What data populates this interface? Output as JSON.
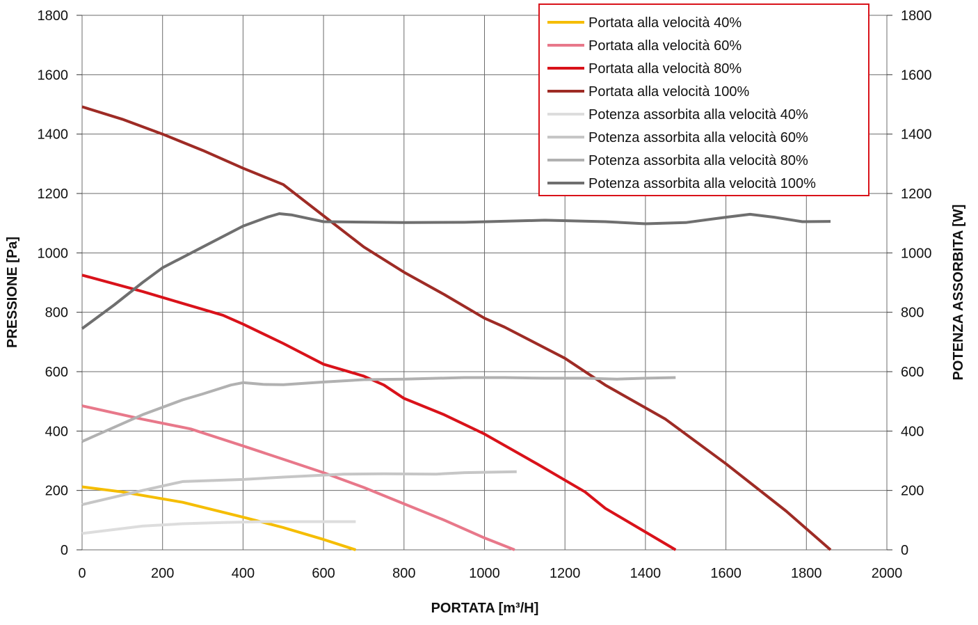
{
  "chart_data": {
    "type": "line",
    "title": "",
    "xlabel": "PORTATA [m³/H]",
    "ylabel": "PRESSIONE [Pa]",
    "y2label": "POTENZA ASSORBITA [W]",
    "xlim": [
      0,
      2000
    ],
    "ylim": [
      0,
      1800
    ],
    "y2lim": [
      0,
      1800
    ],
    "x_ticks": [
      "0",
      "200",
      "400",
      "600",
      "800",
      "1000",
      "1200",
      "1400",
      "1600",
      "1800",
      "2000"
    ],
    "y_ticks": [
      "0",
      "200",
      "400",
      "600",
      "800",
      "1000",
      "1200",
      "1400",
      "1600",
      "1800"
    ],
    "y2_ticks": [
      "0",
      "200",
      "400",
      "600",
      "800",
      "1000",
      "1200",
      "1400",
      "1600",
      "1800"
    ],
    "grid": true,
    "legend_position": "top-right",
    "series": [
      {
        "name": "Portata alla velocità 40%",
        "color": "#f5bd00",
        "axis": "left",
        "points": [
          [
            0,
            212
          ],
          [
            100,
            195
          ],
          [
            250,
            160
          ],
          [
            400,
            110
          ],
          [
            500,
            75
          ],
          [
            600,
            35
          ],
          [
            680,
            0
          ]
        ]
      },
      {
        "name": "Portata alla velocità 60%",
        "color": "#e8788a",
        "axis": "left",
        "points": [
          [
            0,
            485
          ],
          [
            150,
            440
          ],
          [
            270,
            407
          ],
          [
            400,
            350
          ],
          [
            500,
            305
          ],
          [
            600,
            260
          ],
          [
            700,
            210
          ],
          [
            800,
            155
          ],
          [
            900,
            100
          ],
          [
            1000,
            40
          ],
          [
            1075,
            0
          ]
        ]
      },
      {
        "name": "Portata alla velocità 80%",
        "color": "#d9121a",
        "axis": "left",
        "points": [
          [
            0,
            925
          ],
          [
            150,
            870
          ],
          [
            250,
            830
          ],
          [
            350,
            790
          ],
          [
            400,
            760
          ],
          [
            500,
            695
          ],
          [
            600,
            625
          ],
          [
            700,
            585
          ],
          [
            750,
            555
          ],
          [
            800,
            510
          ],
          [
            900,
            455
          ],
          [
            1000,
            390
          ],
          [
            1130,
            290
          ],
          [
            1250,
            195
          ],
          [
            1300,
            140
          ],
          [
            1400,
            60
          ],
          [
            1475,
            0
          ]
        ]
      },
      {
        "name": "Portata alla velocità 100%",
        "color": "#9e2b25",
        "axis": "left",
        "points": [
          [
            0,
            1492
          ],
          [
            100,
            1450
          ],
          [
            200,
            1400
          ],
          [
            300,
            1345
          ],
          [
            400,
            1285
          ],
          [
            500,
            1230
          ],
          [
            600,
            1125
          ],
          [
            700,
            1020
          ],
          [
            800,
            935
          ],
          [
            900,
            860
          ],
          [
            1000,
            780
          ],
          [
            1050,
            750
          ],
          [
            1200,
            645
          ],
          [
            1300,
            555
          ],
          [
            1450,
            440
          ],
          [
            1600,
            290
          ],
          [
            1750,
            130
          ],
          [
            1860,
            0
          ]
        ]
      },
      {
        "name": "Potenza assorbita alla velocità 40%",
        "color": "#dddddd",
        "axis": "right",
        "points": [
          [
            0,
            55
          ],
          [
            150,
            80
          ],
          [
            250,
            88
          ],
          [
            350,
            92
          ],
          [
            450,
            95
          ],
          [
            560,
            95
          ],
          [
            680,
            95
          ]
        ]
      },
      {
        "name": "Potenza assorbita alla velocità 60%",
        "color": "#c6c6c6",
        "axis": "right",
        "points": [
          [
            0,
            152
          ],
          [
            150,
            200
          ],
          [
            250,
            230
          ],
          [
            400,
            237
          ],
          [
            500,
            245
          ],
          [
            650,
            255
          ],
          [
            750,
            256
          ],
          [
            880,
            255
          ],
          [
            950,
            260
          ],
          [
            1080,
            263
          ]
        ]
      },
      {
        "name": "Potenza assorbita alla velocità 80%",
        "color": "#b1b1b1",
        "axis": "right",
        "points": [
          [
            0,
            365
          ],
          [
            150,
            455
          ],
          [
            250,
            505
          ],
          [
            300,
            525
          ],
          [
            370,
            555
          ],
          [
            400,
            563
          ],
          [
            450,
            557
          ],
          [
            500,
            556
          ],
          [
            600,
            565
          ],
          [
            700,
            573
          ],
          [
            800,
            575
          ],
          [
            950,
            580
          ],
          [
            1050,
            580
          ],
          [
            1150,
            578
          ],
          [
            1250,
            578
          ],
          [
            1330,
            575
          ],
          [
            1400,
            578
          ],
          [
            1475,
            580
          ]
        ]
      },
      {
        "name": "Potenza assorbita alla velocità 100%",
        "color": "#6f6f6f",
        "axis": "right",
        "points": [
          [
            0,
            745
          ],
          [
            80,
            825
          ],
          [
            150,
            900
          ],
          [
            200,
            950
          ],
          [
            300,
            1020
          ],
          [
            400,
            1090
          ],
          [
            460,
            1120
          ],
          [
            490,
            1132
          ],
          [
            520,
            1128
          ],
          [
            600,
            1105
          ],
          [
            800,
            1102
          ],
          [
            950,
            1103
          ],
          [
            1150,
            1110
          ],
          [
            1300,
            1105
          ],
          [
            1400,
            1098
          ],
          [
            1500,
            1102
          ],
          [
            1600,
            1120
          ],
          [
            1660,
            1130
          ],
          [
            1720,
            1120
          ],
          [
            1790,
            1105
          ],
          [
            1860,
            1106
          ]
        ]
      }
    ]
  }
}
